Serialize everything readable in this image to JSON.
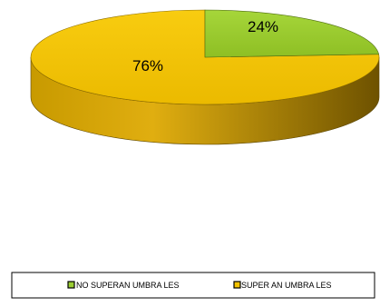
{
  "chart_data": {
    "type": "pie",
    "title": "",
    "categories": [
      "NO SUPERAN UMBRALES",
      "SUPERAN UMBRALES"
    ],
    "values": [
      24,
      76
    ],
    "data_labels": [
      "24%",
      "76%"
    ],
    "legend_labels": [
      "NO SUPERAN UMBRA LES",
      "SUPER AN UMBRA LES"
    ],
    "colors": {
      "no_superan_top": "#9ACD32",
      "no_superan_side": "#6B8E23",
      "superan_top": "#F2C200",
      "superan_side_light": "#E0A800",
      "superan_side_dark": "#7A5A00"
    },
    "style": "3d-pie",
    "legend_position": "bottom"
  }
}
